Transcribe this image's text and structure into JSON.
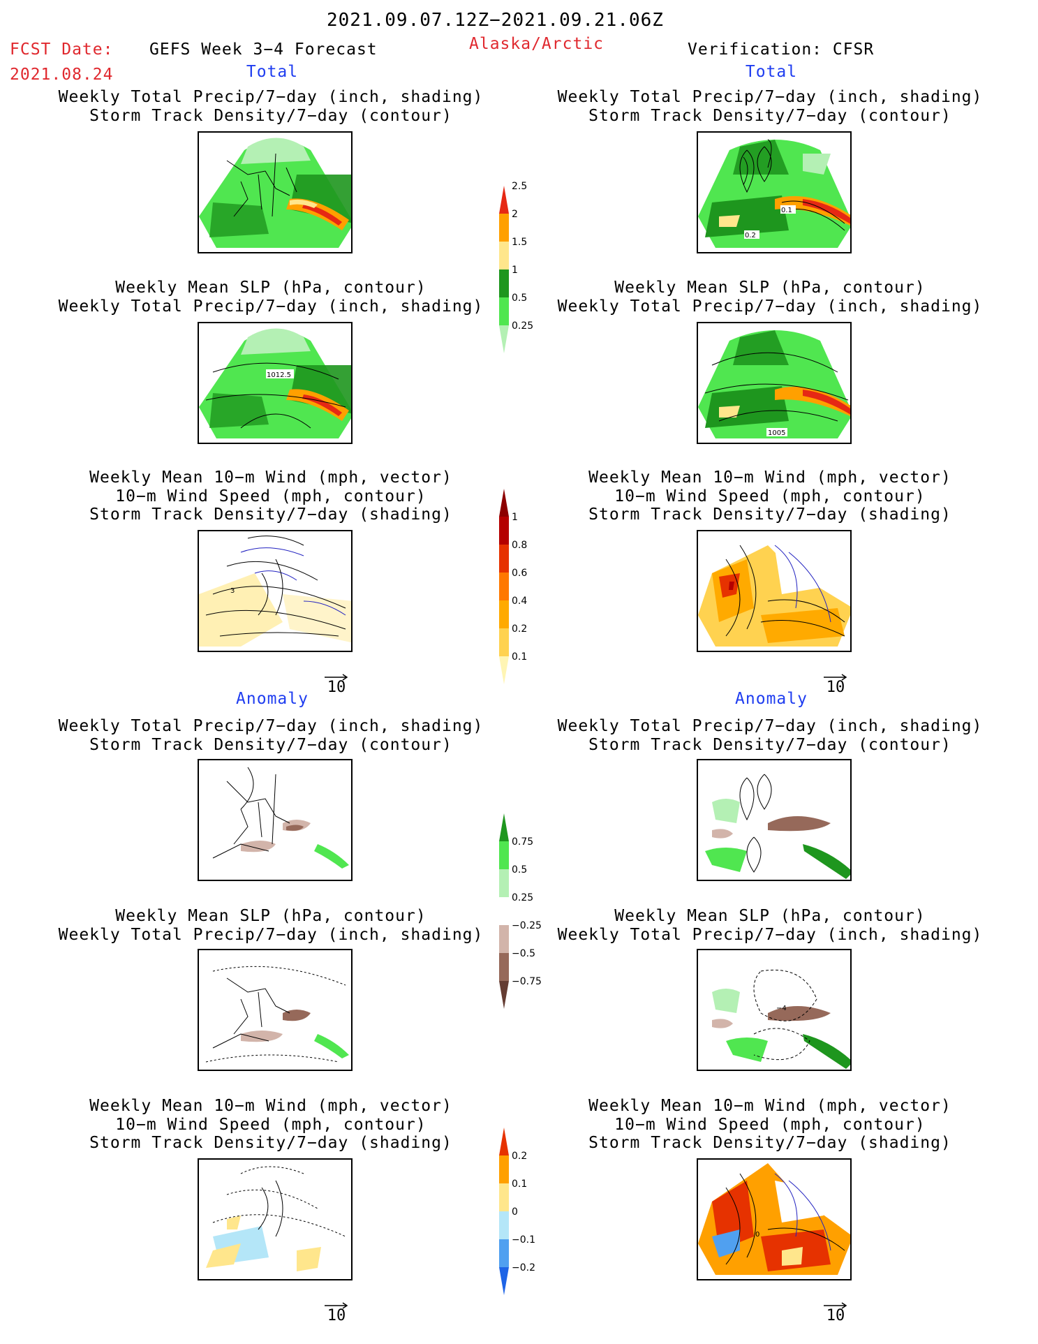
{
  "header": {
    "period": "2021.09.07.12Z−2021.09.21.06Z",
    "fcst_label": "FCST Date:",
    "fcst_date": "2021.08.24",
    "forecast_title": "GEFS Week 3−4 Forecast",
    "region": "Alaska/Arctic",
    "verification": "Verification: CFSR"
  },
  "sections": {
    "total_left": "Total",
    "total_right": "Total",
    "anomaly_left": "Anomaly",
    "anomaly_right": "Anomaly"
  },
  "titles": {
    "precip_storm": [
      "Weekly Total Precip/7−day (inch, shading)",
      "Storm Track Density/7−day (contour)"
    ],
    "slp_precip": [
      "Weekly Mean SLP (hPa, contour)",
      "Weekly Total Precip/7−day (inch, shading)"
    ],
    "wind_storm": [
      "Weekly Mean 10−m Wind (mph, vector)",
      "10−m Wind Speed (mph, contour)",
      "Storm Track Density/7−day (shading)"
    ]
  },
  "map_labels": {
    "fc_slp": "1012.5",
    "ob_slp": "1005",
    "ob_storm_a": "0.1",
    "ob_storm_b": "0.2",
    "fc_wind": "3",
    "anom_ob_slp": "−4",
    "anom_ob_wind": "0"
  },
  "vector_ref": "10",
  "colorbars": {
    "precip_total": {
      "colors": [
        "#b4f0b4",
        "#50e650",
        "#1e961e",
        "#ffe68c",
        "#ffa000",
        "#e62814"
      ],
      "ticks": [
        "0.25",
        "0.5",
        "1",
        "1.5",
        "2",
        "2.5"
      ]
    },
    "storm_total": {
      "colors": [
        "#fff5b4",
        "#ffd250",
        "#ffaa00",
        "#ff7800",
        "#e63200",
        "#b40000",
        "#8c0000"
      ],
      "ticks": [
        "0.1",
        "0.2",
        "0.4",
        "0.6",
        "0.8",
        "1"
      ]
    },
    "precip_anom": {
      "colors": [
        "#643c32",
        "#96695a",
        "#d2b4aa",
        "#ffffff",
        "#b4f0b4",
        "#50e650",
        "#1e961e"
      ],
      "ticks": [
        "−0.75",
        "−0.5",
        "−0.25",
        "0.25",
        "0.5",
        "0.75"
      ]
    },
    "storm_anom": {
      "colors": [
        "#1e64e6",
        "#50a0f0",
        "#b4e6f8",
        "#ffe68c",
        "#ffa000",
        "#e63200"
      ],
      "ticks": [
        "−0.2",
        "−0.1",
        "0",
        "0.1",
        "0.2"
      ]
    }
  }
}
